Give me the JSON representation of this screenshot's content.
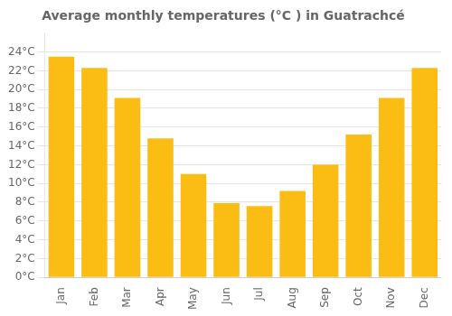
{
  "chart_data": {
    "type": "bar",
    "title": "Average monthly temperatures (°C ) in Guatrachcé",
    "categories": [
      "Jan",
      "Feb",
      "Mar",
      "Apr",
      "May",
      "Jun",
      "Jul",
      "Aug",
      "Sep",
      "Oct",
      "Nov",
      "Dec"
    ],
    "values": [
      23.5,
      22.3,
      19.1,
      14.8,
      11.0,
      7.9,
      7.6,
      9.2,
      12.0,
      15.2,
      19.1,
      22.3
    ],
    "color": "#FBBC13",
    "ylim": [
      0,
      26
    ],
    "yticks": [
      {
        "value": 0,
        "label": "0°C"
      },
      {
        "value": 2,
        "label": "2°C"
      },
      {
        "value": 4,
        "label": "4°C"
      },
      {
        "value": 6,
        "label": "6°C"
      },
      {
        "value": 8,
        "label": "8°C"
      },
      {
        "value": 10,
        "label": "10°C"
      },
      {
        "value": 12,
        "label": "12°C"
      },
      {
        "value": 14,
        "label": "14°C"
      },
      {
        "value": 16,
        "label": "16°C"
      },
      {
        "value": 18,
        "label": "18°C"
      },
      {
        "value": 20,
        "label": "20°C"
      },
      {
        "value": 22,
        "label": "22°C"
      },
      {
        "value": 24,
        "label": "24°C"
      }
    ],
    "grid": true
  }
}
